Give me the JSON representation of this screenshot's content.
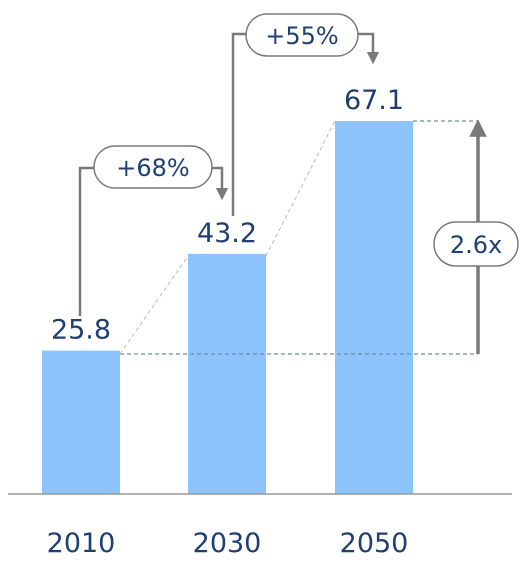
{
  "chart_data": {
    "type": "bar",
    "categories": [
      "2010",
      "2030",
      "2050"
    ],
    "values": [
      25.8,
      43.2,
      67.1
    ],
    "value_labels": [
      "25.8",
      "43.2",
      "67.1"
    ],
    "ylim": [
      0,
      70
    ],
    "grid": false,
    "legend": "none",
    "annotations": {
      "growth_1": "+68%",
      "growth_2": "+55%",
      "multiple": "2.6x"
    },
    "colors": {
      "bar": "#8cc4fb",
      "text": "#1f3f73",
      "arrow": "#7a7a7a",
      "dashed": "#6f8fb0",
      "axis": "#999999"
    }
  }
}
